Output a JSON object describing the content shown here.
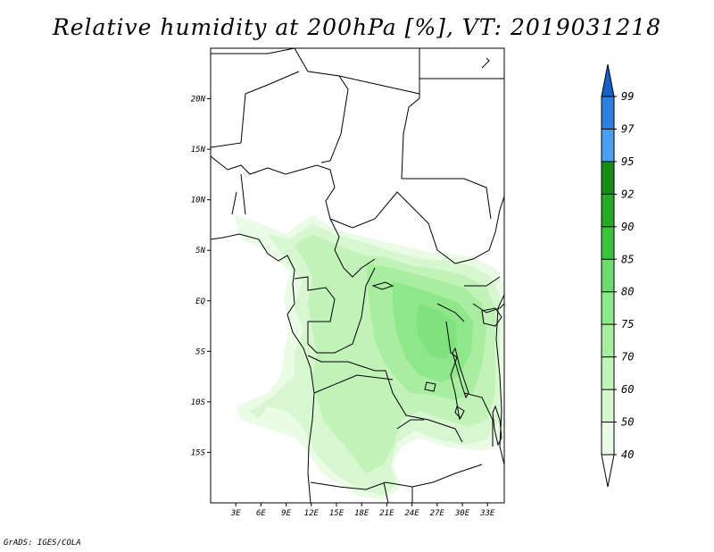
{
  "title": "Relative humidity at 200hPa [%], VT: 2019031218",
  "credit": "GrADS: IGES/COLA",
  "map": {
    "lon_range": [
      0,
      35
    ],
    "lat_range": [
      -20,
      25
    ],
    "lat_ticks": [
      {
        "value": 20,
        "label": "20N"
      },
      {
        "value": 15,
        "label": "15N"
      },
      {
        "value": 10,
        "label": "10N"
      },
      {
        "value": 5,
        "label": "5N"
      },
      {
        "value": 0,
        "label": "EQ"
      },
      {
        "value": -5,
        "label": "5S"
      },
      {
        "value": -10,
        "label": "10S"
      },
      {
        "value": -15,
        "label": "15S"
      }
    ],
    "lon_ticks": [
      {
        "value": 3,
        "label": "3E"
      },
      {
        "value": 6,
        "label": "6E"
      },
      {
        "value": 9,
        "label": "9E"
      },
      {
        "value": 12,
        "label": "12E"
      },
      {
        "value": 15,
        "label": "15E"
      },
      {
        "value": 18,
        "label": "18E"
      },
      {
        "value": 21,
        "label": "21E"
      },
      {
        "value": 24,
        "label": "24E"
      },
      {
        "value": 27,
        "label": "27E"
      },
      {
        "value": 30,
        "label": "30E"
      },
      {
        "value": 33,
        "label": "33E"
      }
    ]
  },
  "colorbar": {
    "labels": [
      "40",
      "50",
      "60",
      "70",
      "75",
      "80",
      "85",
      "90",
      "92",
      "95",
      "97",
      "99"
    ],
    "colors": [
      "#ffffff",
      "#eafbe6",
      "#d6f7d0",
      "#c1f2b8",
      "#a9eea0",
      "#8ee88a",
      "#6ddb6d",
      "#3ec23e",
      "#27a827",
      "#188c18",
      "#4b9ef0",
      "#2d7fe0",
      "#1760c8"
    ]
  }
}
